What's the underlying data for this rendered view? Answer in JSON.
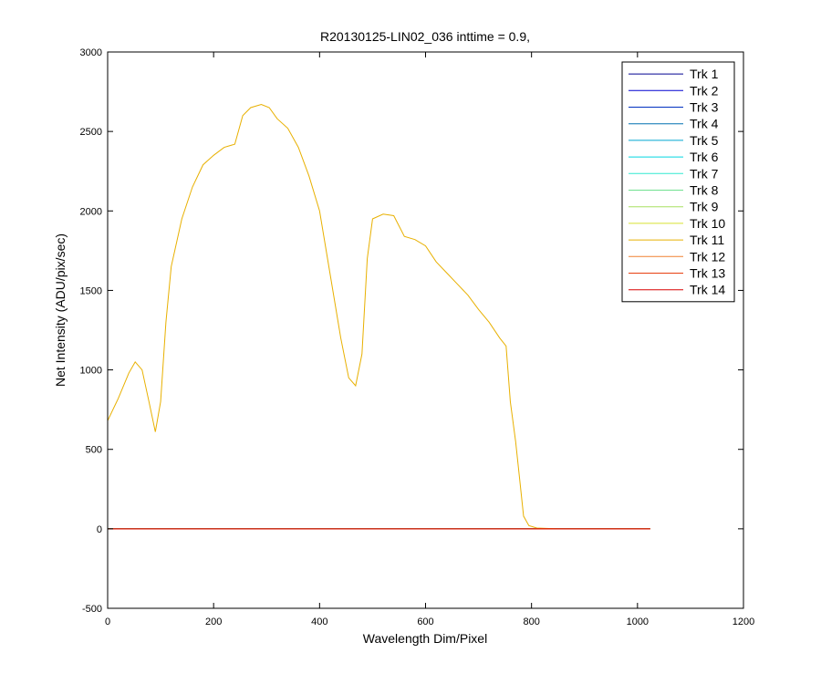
{
  "chart_data": {
    "type": "line",
    "title": "R20130125-LIN02_036 inttime = 0.9,",
    "x_label": "Wavelength Dim/Pixel",
    "y_label": "Net Intensity (ADU/pix/sec)",
    "xlim": [
      0,
      1200
    ],
    "xticks": [
      0,
      200,
      400,
      600,
      800,
      1000,
      1200
    ],
    "ylim": [
      -500,
      3000
    ],
    "yticks": [
      -500,
      0,
      500,
      1000,
      1500,
      2000,
      2500,
      3000
    ],
    "grid": false,
    "legend": "northeast",
    "x": [
      0,
      20,
      40,
      52,
      65,
      78,
      90,
      100,
      110,
      120,
      140,
      160,
      180,
      200,
      220,
      240,
      255,
      270,
      290,
      305,
      320,
      340,
      360,
      380,
      400,
      420,
      440,
      455,
      468,
      480,
      490,
      500,
      520,
      540,
      560,
      580,
      600,
      620,
      640,
      660,
      680,
      700,
      720,
      740,
      752,
      760,
      770,
      778,
      785,
      795,
      810,
      850,
      1024
    ],
    "series": [
      {
        "name": "Trk 1",
        "color": "#000090",
        "values": [
          0,
          0,
          0,
          0,
          0,
          0,
          0,
          0,
          0,
          0,
          0,
          0,
          0,
          0,
          0,
          0,
          0,
          0,
          0,
          0,
          0,
          0,
          0,
          0,
          0,
          0,
          0,
          0,
          0,
          0,
          0,
          0,
          0,
          0,
          0,
          0,
          0,
          0,
          0,
          0,
          0,
          0,
          0,
          0,
          0,
          0,
          0,
          0,
          0,
          0,
          0,
          0,
          0
        ]
      },
      {
        "name": "Trk 2",
        "color": "#0000d0",
        "values": [
          0,
          0,
          0,
          0,
          0,
          0,
          0,
          0,
          0,
          0,
          0,
          0,
          0,
          0,
          0,
          0,
          0,
          0,
          0,
          0,
          0,
          0,
          0,
          0,
          0,
          0,
          0,
          0,
          0,
          0,
          0,
          0,
          0,
          0,
          0,
          0,
          0,
          0,
          0,
          0,
          0,
          0,
          0,
          0,
          0,
          0,
          0,
          0,
          0,
          0,
          0,
          0,
          0
        ]
      },
      {
        "name": "Trk 3",
        "color": "#0030c0",
        "values": [
          0,
          0,
          0,
          0,
          0,
          0,
          0,
          0,
          0,
          0,
          0,
          0,
          0,
          0,
          0,
          0,
          0,
          0,
          0,
          0,
          0,
          0,
          0,
          0,
          0,
          0,
          0,
          0,
          0,
          0,
          0,
          0,
          0,
          0,
          0,
          0,
          0,
          0,
          0,
          0,
          0,
          0,
          0,
          0,
          0,
          0,
          0,
          0,
          0,
          0,
          0,
          0,
          0
        ]
      },
      {
        "name": "Trk 4",
        "color": "#0070b0",
        "values": [
          0,
          0,
          0,
          0,
          0,
          0,
          0,
          0,
          0,
          0,
          0,
          0,
          0,
          0,
          0,
          0,
          0,
          0,
          0,
          0,
          0,
          0,
          0,
          0,
          0,
          0,
          0,
          0,
          0,
          0,
          0,
          0,
          0,
          0,
          0,
          0,
          0,
          0,
          0,
          0,
          0,
          0,
          0,
          0,
          0,
          0,
          0,
          0,
          0,
          0,
          0,
          0,
          0
        ]
      },
      {
        "name": "Trk 5",
        "color": "#00a8d0",
        "values": [
          0,
          0,
          0,
          0,
          0,
          0,
          0,
          0,
          0,
          0,
          0,
          0,
          0,
          0,
          0,
          0,
          0,
          0,
          0,
          0,
          0,
          0,
          0,
          0,
          0,
          0,
          0,
          0,
          0,
          0,
          0,
          0,
          0,
          0,
          0,
          0,
          0,
          0,
          0,
          0,
          0,
          0,
          0,
          0,
          0,
          0,
          0,
          0,
          0,
          0,
          0,
          0,
          0
        ]
      },
      {
        "name": "Trk 6",
        "color": "#00d8e0",
        "values": [
          0,
          0,
          0,
          0,
          0,
          0,
          0,
          0,
          0,
          0,
          0,
          0,
          0,
          0,
          0,
          0,
          0,
          0,
          0,
          0,
          0,
          0,
          0,
          0,
          0,
          0,
          0,
          0,
          0,
          0,
          0,
          0,
          0,
          0,
          0,
          0,
          0,
          0,
          0,
          0,
          0,
          0,
          0,
          0,
          0,
          0,
          0,
          0,
          0,
          0,
          0,
          0,
          0
        ]
      },
      {
        "name": "Trk 7",
        "color": "#30e8d0",
        "values": [
          0,
          0,
          0,
          0,
          0,
          0,
          0,
          0,
          0,
          0,
          0,
          0,
          0,
          0,
          0,
          0,
          0,
          0,
          0,
          0,
          0,
          0,
          0,
          0,
          0,
          0,
          0,
          0,
          0,
          0,
          0,
          0,
          0,
          0,
          0,
          0,
          0,
          0,
          0,
          0,
          0,
          0,
          0,
          0,
          0,
          0,
          0,
          0,
          0,
          0,
          0,
          0,
          0
        ]
      },
      {
        "name": "Trk 8",
        "color": "#70e090",
        "values": [
          0,
          0,
          0,
          0,
          0,
          0,
          0,
          0,
          0,
          0,
          0,
          0,
          0,
          0,
          0,
          0,
          0,
          0,
          0,
          0,
          0,
          0,
          0,
          0,
          0,
          0,
          0,
          0,
          0,
          0,
          0,
          0,
          0,
          0,
          0,
          0,
          0,
          0,
          0,
          0,
          0,
          0,
          0,
          0,
          0,
          0,
          0,
          0,
          0,
          0,
          0,
          0,
          0
        ]
      },
      {
        "name": "Trk 9",
        "color": "#a8e060",
        "values": [
          0,
          0,
          0,
          0,
          0,
          0,
          0,
          0,
          0,
          0,
          0,
          0,
          0,
          0,
          0,
          0,
          0,
          0,
          0,
          0,
          0,
          0,
          0,
          0,
          0,
          0,
          0,
          0,
          0,
          0,
          0,
          0,
          0,
          0,
          0,
          0,
          0,
          0,
          0,
          0,
          0,
          0,
          0,
          0,
          0,
          0,
          0,
          0,
          0,
          0,
          0,
          0,
          0
        ]
      },
      {
        "name": "Trk 10",
        "color": "#d8e030",
        "values": [
          0,
          0,
          0,
          0,
          0,
          0,
          0,
          0,
          0,
          0,
          0,
          0,
          0,
          0,
          0,
          0,
          0,
          0,
          0,
          0,
          0,
          0,
          0,
          0,
          0,
          0,
          0,
          0,
          0,
          0,
          0,
          0,
          0,
          0,
          0,
          0,
          0,
          0,
          0,
          0,
          0,
          0,
          0,
          0,
          0,
          0,
          0,
          0,
          0,
          0,
          0,
          0,
          0
        ]
      },
      {
        "name": "Trk 11",
        "color": "#e8b000",
        "values": [
          680,
          820,
          980,
          1050,
          1000,
          800,
          610,
          800,
          1300,
          1650,
          1950,
          2150,
          2290,
          2350,
          2400,
          2420,
          2600,
          2650,
          2670,
          2650,
          2580,
          2520,
          2400,
          2220,
          2000,
          1600,
          1200,
          950,
          900,
          1100,
          1700,
          1950,
          1980,
          1970,
          1840,
          1820,
          1780,
          1680,
          1610,
          1540,
          1470,
          1380,
          1300,
          1200,
          1150,
          800,
          550,
          300,
          80,
          20,
          5,
          0,
          0
        ]
      },
      {
        "name": "Trk 12",
        "color": "#f08030",
        "values": [
          0,
          0,
          0,
          0,
          0,
          0,
          0,
          0,
          0,
          0,
          0,
          0,
          0,
          0,
          0,
          0,
          0,
          0,
          0,
          0,
          0,
          0,
          0,
          0,
          0,
          0,
          0,
          0,
          0,
          0,
          0,
          0,
          0,
          0,
          0,
          0,
          0,
          0,
          0,
          0,
          0,
          0,
          0,
          0,
          0,
          0,
          0,
          0,
          0,
          0,
          0,
          0,
          0
        ]
      },
      {
        "name": "Trk 13",
        "color": "#e84010",
        "values": [
          0,
          0,
          0,
          0,
          0,
          0,
          0,
          0,
          0,
          0,
          0,
          0,
          0,
          0,
          0,
          0,
          0,
          0,
          0,
          0,
          0,
          0,
          0,
          0,
          0,
          0,
          0,
          0,
          0,
          0,
          0,
          0,
          0,
          0,
          0,
          0,
          0,
          0,
          0,
          0,
          0,
          0,
          0,
          0,
          0,
          0,
          0,
          0,
          0,
          0,
          0,
          0,
          0
        ]
      },
      {
        "name": "Trk 14",
        "color": "#d80000",
        "values": [
          0,
          0,
          0,
          0,
          0,
          0,
          0,
          0,
          0,
          0,
          0,
          0,
          0,
          0,
          0,
          0,
          0,
          0,
          0,
          0,
          0,
          0,
          0,
          0,
          0,
          0,
          0,
          0,
          0,
          0,
          0,
          0,
          0,
          0,
          0,
          0,
          0,
          0,
          0,
          0,
          0,
          0,
          0,
          0,
          0,
          0,
          0,
          0,
          0,
          0,
          0,
          0,
          0
        ]
      }
    ]
  }
}
